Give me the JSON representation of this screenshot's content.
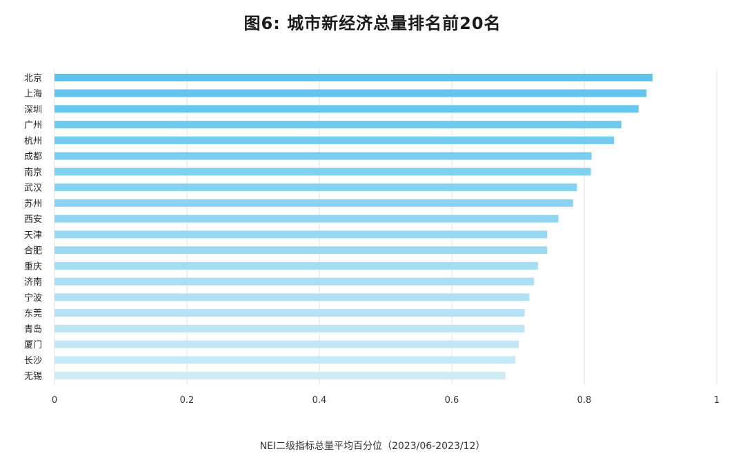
{
  "chart_data": {
    "type": "bar",
    "orientation": "horizontal",
    "title": "图6: 城市新经济总量排名前20名",
    "xlabel": "NEI二级指标总量平均百分位（2023/06-2023/12）",
    "ylabel": "",
    "xlim": [
      0,
      1
    ],
    "xticks": [
      "0",
      "0.2",
      "0.4",
      "0.6",
      "0.8",
      "1"
    ],
    "grid": "vertical",
    "legend": "none",
    "categories": [
      "北京",
      "上海",
      "深圳",
      "广州",
      "杭州",
      "成都",
      "南京",
      "武汉",
      "苏州",
      "西安",
      "天津",
      "合肥",
      "重庆",
      "济南",
      "宁波",
      "东莞",
      "青岛",
      "厦门",
      "长沙",
      "无锡"
    ],
    "values": [
      0.903,
      0.894,
      0.882,
      0.856,
      0.845,
      0.811,
      0.81,
      0.789,
      0.783,
      0.761,
      0.744,
      0.744,
      0.73,
      0.724,
      0.717,
      0.71,
      0.71,
      0.701,
      0.696,
      0.681
    ],
    "colors": {
      "top": "#5bc3ec",
      "bottom": "#cdeaf7",
      "grid": "#e2e2e2"
    }
  }
}
